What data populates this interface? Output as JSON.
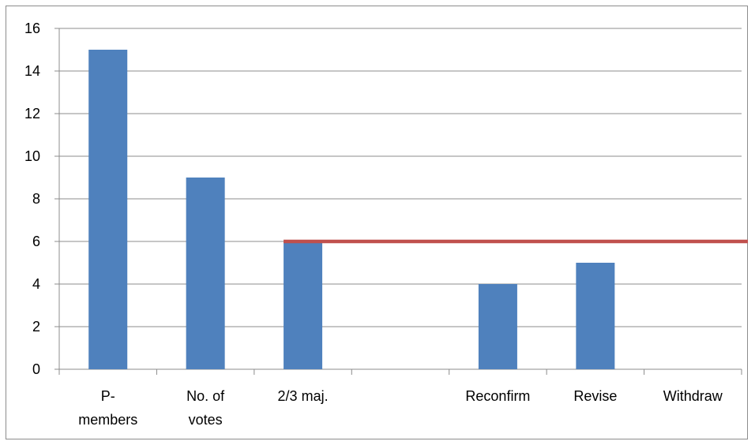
{
  "chart_data": {
    "type": "bar",
    "categories": [
      "P-members",
      "No. of votes",
      "2/3 maj.",
      "",
      "Reconfirm",
      "Revise",
      "Withdraw"
    ],
    "category_label_lines": [
      [
        "P-",
        "members"
      ],
      [
        "No. of",
        "votes"
      ],
      [
        "2/3 maj."
      ],
      [
        ""
      ],
      [
        "Reconfirm"
      ],
      [
        "Revise"
      ],
      [
        "Withdraw"
      ]
    ],
    "values": [
      15,
      9,
      6,
      null,
      4,
      5,
      0
    ],
    "reference_line": {
      "value": 6,
      "from_category_index": 2,
      "color": "#c0504d"
    },
    "title": "",
    "xlabel": "",
    "ylabel": "",
    "ylim": [
      0,
      16
    ],
    "yticks": [
      0,
      2,
      4,
      6,
      8,
      10,
      12,
      14,
      16
    ],
    "grid": true,
    "legend": "none",
    "colors": {
      "bar": "#4f81bd",
      "grid": "#8c8c8c",
      "axis": "#8c8c8c"
    }
  }
}
